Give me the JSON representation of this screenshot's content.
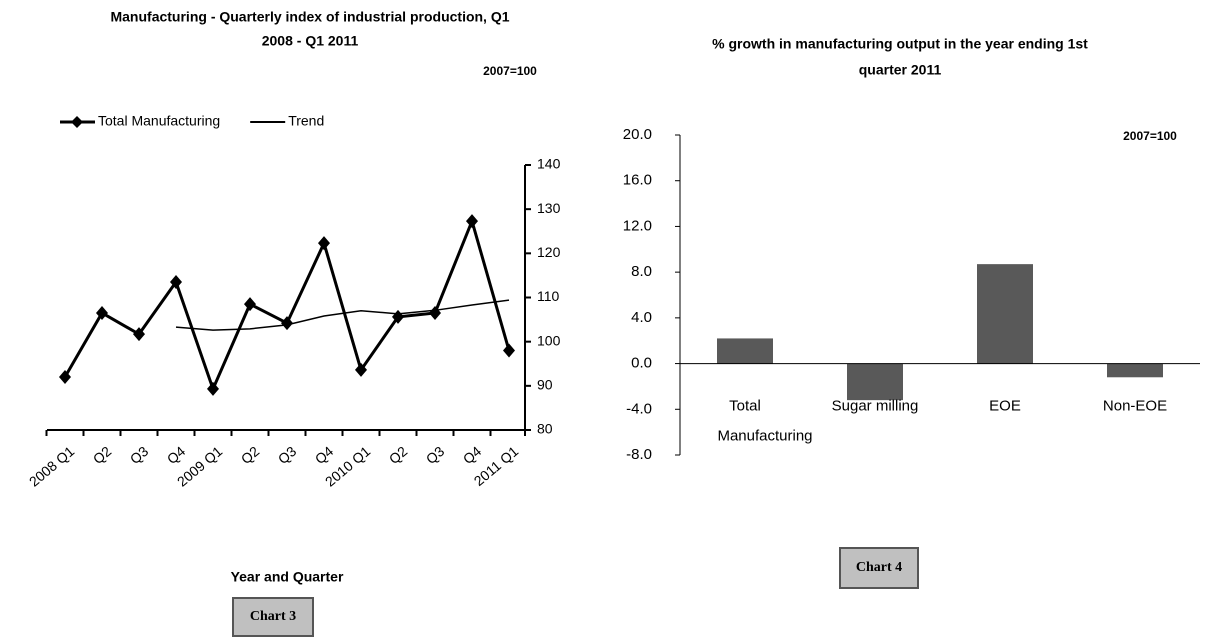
{
  "chart_data": [
    {
      "type": "line",
      "title_lines": [
        "Manufacturing - Quarterly index of industrial production, Q1",
        "2008 - Q1 2011"
      ],
      "annotation": "2007=100",
      "x_label": "Year and Quarter",
      "caption": "Chart 3",
      "categories": [
        "2008 Q1",
        "Q2",
        "Q3",
        "Q4",
        "2009 Q1",
        "Q2",
        "Q3",
        "Q4",
        "2010 Q1",
        "Q2",
        "Q3",
        "Q4",
        "2011 Q1"
      ],
      "series": [
        {
          "name": "Total Manufacturing",
          "color": "#000000",
          "marker": "diamond",
          "values": [
            92,
            106.5,
            101.7,
            113.5,
            89.3,
            108.5,
            104.2,
            122.3,
            93.6,
            105.6,
            106.5,
            127.3,
            98
          ]
        },
        {
          "name": "Trend",
          "color": "#000000",
          "values": [
            null,
            null,
            null,
            103.3,
            102.6,
            102.9,
            103.8,
            105.8,
            107,
            106.3,
            107.1,
            108.3,
            109.4
          ]
        }
      ],
      "ylim": [
        80,
        140
      ],
      "yticks": [
        80,
        90,
        100,
        110,
        120,
        130,
        140
      ],
      "y_axis_side": "right"
    },
    {
      "type": "bar",
      "title_lines": [
        "% growth in manufacturing output in the year ending 1st",
        "quarter 2011"
      ],
      "annotation": "2007=100",
      "caption": "Chart 4",
      "categories": [
        "Total Manufacturing",
        "Sugar milling",
        "EOE",
        "Non-EOE"
      ],
      "values": [
        2.2,
        -3.2,
        8.7,
        -1.2
      ],
      "color": "#595959",
      "ylim": [
        -8,
        20
      ],
      "yticks": [
        {
          "value": -8,
          "label": "-8.0"
        },
        {
          "value": -4,
          "label": "-4.0"
        },
        {
          "value": 0,
          "label": "0.0"
        },
        {
          "value": 4,
          "label": "4.0"
        },
        {
          "value": 8,
          "label": "8.0"
        },
        {
          "value": 12,
          "label": "12.0"
        },
        {
          "value": 16,
          "label": "16.0"
        },
        {
          "value": 20,
          "label": "20.0"
        }
      ]
    }
  ]
}
